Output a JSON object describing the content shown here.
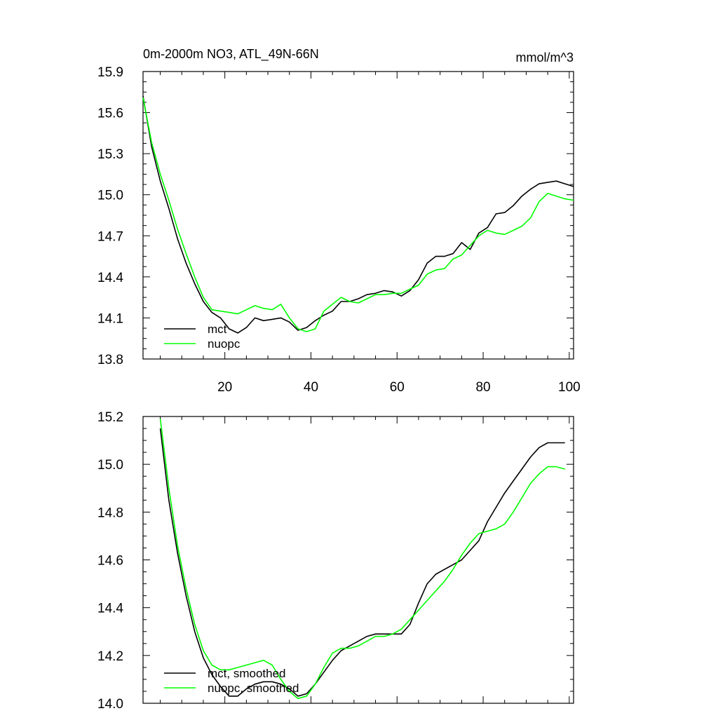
{
  "chart_data": [
    {
      "type": "line",
      "title": "0m-2000m NO3, ATL_49N-66N",
      "units": "mmol/m^3",
      "xlim": [
        1,
        101
      ],
      "ylim": [
        13.8,
        15.9
      ],
      "xticks": [
        "20",
        "40",
        "60",
        "80",
        "100"
      ],
      "yticks": [
        "13.8",
        "14.1",
        "14.4",
        "14.7",
        "15.0",
        "15.3",
        "15.6",
        "15.9"
      ],
      "legend_position": "bottom-left",
      "series": [
        {
          "name": "mct",
          "color": "#000000",
          "x": [
            1,
            3,
            5,
            7,
            9,
            11,
            13,
            15,
            17,
            19,
            21,
            23,
            25,
            27,
            29,
            31,
            33,
            35,
            37,
            39,
            41,
            43,
            45,
            47,
            49,
            51,
            53,
            55,
            57,
            59,
            61,
            63,
            65,
            67,
            69,
            71,
            73,
            75,
            77,
            79,
            81,
            83,
            85,
            87,
            89,
            91,
            93,
            95,
            97,
            99,
            101
          ],
          "y": [
            15.72,
            15.35,
            15.1,
            14.9,
            14.68,
            14.5,
            14.35,
            14.22,
            14.14,
            14.1,
            14.02,
            13.99,
            14.03,
            14.1,
            14.08,
            14.09,
            14.1,
            14.07,
            14.01,
            14.03,
            14.08,
            14.12,
            14.15,
            14.22,
            14.22,
            14.24,
            14.27,
            14.28,
            14.3,
            14.29,
            14.26,
            14.3,
            14.38,
            14.5,
            14.55,
            14.55,
            14.57,
            14.65,
            14.6,
            14.72,
            14.76,
            14.86,
            14.87,
            14.92,
            14.99,
            15.04,
            15.08,
            15.09,
            15.1,
            15.08,
            15.06
          ]
        },
        {
          "name": "nuopc",
          "color": "#00ff00",
          "x": [
            1,
            3,
            5,
            7,
            9,
            11,
            13,
            15,
            17,
            19,
            21,
            23,
            25,
            27,
            29,
            31,
            33,
            35,
            37,
            39,
            41,
            43,
            45,
            47,
            49,
            51,
            53,
            55,
            57,
            59,
            61,
            63,
            65,
            67,
            69,
            71,
            73,
            75,
            77,
            79,
            81,
            83,
            85,
            87,
            89,
            91,
            93,
            95,
            97,
            99,
            101
          ],
          "y": [
            15.71,
            15.38,
            15.15,
            14.96,
            14.75,
            14.57,
            14.4,
            14.25,
            14.16,
            14.15,
            14.14,
            14.13,
            14.16,
            14.19,
            14.17,
            14.16,
            14.2,
            14.1,
            14.02,
            14.0,
            14.02,
            14.15,
            14.2,
            14.25,
            14.22,
            14.21,
            14.24,
            14.27,
            14.27,
            14.28,
            14.28,
            14.31,
            14.34,
            14.42,
            14.45,
            14.46,
            14.53,
            14.56,
            14.63,
            14.7,
            14.74,
            14.72,
            14.71,
            14.74,
            14.77,
            14.83,
            14.95,
            15.01,
            14.99,
            14.97,
            14.96
          ]
        }
      ]
    },
    {
      "type": "line",
      "xlim": [
        1,
        101
      ],
      "ylim": [
        14.0,
        15.2
      ],
      "yticks": [
        "14.0",
        "14.2",
        "14.4",
        "14.6",
        "14.8",
        "15.0",
        "15.2"
      ],
      "legend_position": "bottom-left",
      "series": [
        {
          "name": "mct, smoothed",
          "color": "#000000",
          "x": [
            5,
            7,
            9,
            11,
            13,
            15,
            17,
            19,
            21,
            23,
            25,
            27,
            29,
            31,
            33,
            35,
            37,
            39,
            41,
            43,
            45,
            47,
            49,
            51,
            53,
            55,
            57,
            59,
            61,
            63,
            65,
            67,
            69,
            71,
            73,
            75,
            77,
            79,
            81,
            83,
            85,
            87,
            89,
            91,
            93,
            95,
            97,
            99
          ],
          "y": [
            15.15,
            14.85,
            14.63,
            14.45,
            14.3,
            14.19,
            14.12,
            14.07,
            14.03,
            14.03,
            14.06,
            14.08,
            14.09,
            14.09,
            14.08,
            14.06,
            14.03,
            14.04,
            14.08,
            14.13,
            14.18,
            14.22,
            14.24,
            14.26,
            14.28,
            14.29,
            14.29,
            14.29,
            14.29,
            14.33,
            14.42,
            14.5,
            14.54,
            14.56,
            14.58,
            14.6,
            14.64,
            14.68,
            14.76,
            14.82,
            14.88,
            14.93,
            14.98,
            15.03,
            15.07,
            15.09,
            15.09,
            15.09
          ]
        },
        {
          "name": "nuopc, smoothed",
          "color": "#00ff00",
          "x": [
            5,
            7,
            9,
            11,
            13,
            15,
            17,
            19,
            21,
            23,
            25,
            27,
            29,
            31,
            33,
            35,
            37,
            39,
            41,
            43,
            45,
            47,
            49,
            51,
            53,
            55,
            57,
            59,
            61,
            63,
            65,
            67,
            69,
            71,
            73,
            75,
            77,
            79,
            81,
            83,
            85,
            87,
            89,
            91,
            93,
            95,
            97,
            99
          ],
          "y": [
            15.19,
            14.9,
            14.66,
            14.48,
            14.33,
            14.22,
            14.16,
            14.14,
            14.14,
            14.15,
            14.16,
            14.17,
            14.18,
            14.16,
            14.1,
            14.05,
            14.02,
            14.03,
            14.08,
            14.15,
            14.21,
            14.23,
            14.23,
            14.24,
            14.26,
            14.28,
            14.28,
            14.29,
            14.31,
            14.35,
            14.39,
            14.43,
            14.47,
            14.51,
            14.56,
            14.62,
            14.67,
            14.71,
            14.72,
            14.73,
            14.75,
            14.8,
            14.86,
            14.92,
            14.96,
            14.99,
            14.99,
            14.98
          ]
        }
      ]
    }
  ]
}
